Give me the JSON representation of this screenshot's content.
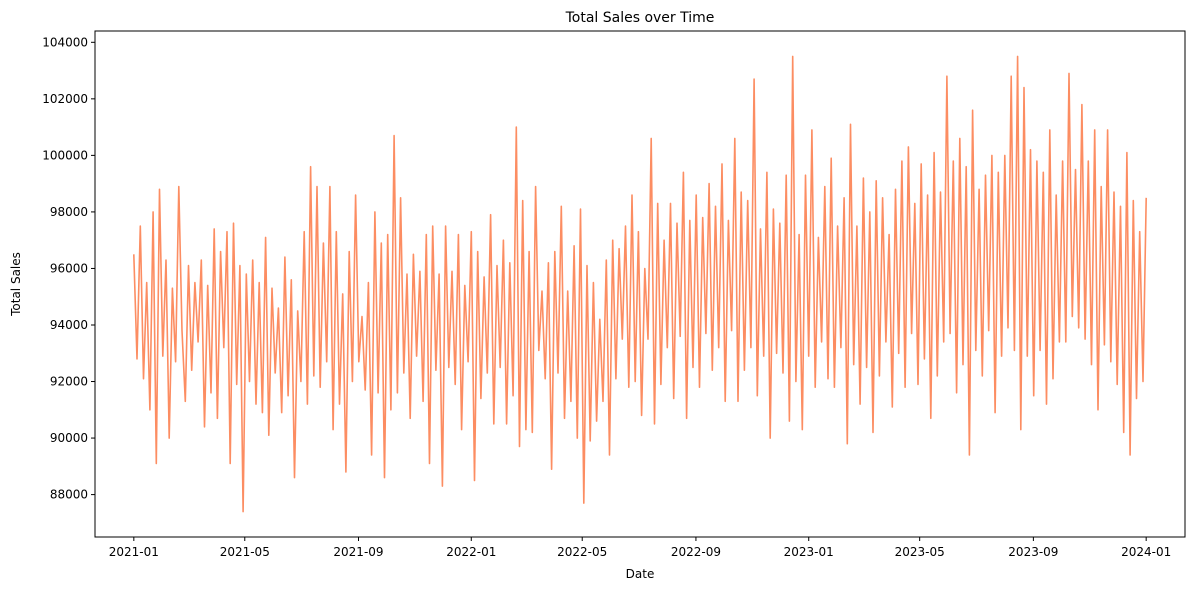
{
  "chart_data": {
    "type": "line",
    "title": "Total Sales over Time",
    "xlabel": "Date",
    "ylabel": "Total Sales",
    "x_start": "2021-01-01",
    "x_end": "2024-01-01",
    "xlim": [
      "2020-11-20",
      "2024-02-12"
    ],
    "ylim": [
      86500,
      104400
    ],
    "grid": false,
    "line_color": "#fc8d62",
    "x_ticks": [
      "2021-01",
      "2021-05",
      "2021-09",
      "2022-01",
      "2022-05",
      "2022-09",
      "2023-01",
      "2023-05",
      "2023-09",
      "2024-01"
    ],
    "y_ticks": [
      "88000",
      "90000",
      "92000",
      "94000",
      "96000",
      "98000",
      "100000",
      "102000",
      "104000"
    ],
    "series": [
      {
        "values": [
          96500,
          92800,
          97500,
          92100,
          95500,
          91000,
          98000,
          89100,
          98800,
          92900,
          96300,
          90000,
          95300,
          92700,
          98900,
          93800,
          91300,
          96100,
          92400,
          95500,
          93400,
          96300,
          90400,
          95400,
          91600,
          97400,
          90700,
          96600,
          93200,
          97300,
          89100,
          97600,
          91900,
          96100,
          87400,
          95800,
          92000,
          96300,
          91200,
          95500,
          90900,
          97100,
          90100,
          95300,
          92300,
          94600,
          90900,
          96400,
          91500,
          95600,
          88600,
          94500,
          92000,
          97300,
          91200,
          99600,
          92200,
          98900,
          91800,
          96900,
          92700,
          98900,
          90300,
          97300,
          91200,
          95100,
          88800,
          96600,
          92000,
          98600,
          92700,
          94300,
          91700,
          95500,
          89400,
          98000,
          91600,
          96900,
          88600,
          97200,
          91000,
          100700,
          91600,
          98500,
          92300,
          95800,
          90700,
          96500,
          92900,
          95900,
          91300,
          97200,
          89100,
          97500,
          92400,
          95800,
          88300,
          97500,
          92500,
          95900,
          91900,
          97200,
          90300,
          95400,
          92700,
          97300,
          88500,
          96600,
          91400,
          95700,
          92300,
          97900,
          90500,
          96100,
          92500,
          97000,
          90500,
          96200,
          91500,
          101000,
          89700,
          98400,
          90300,
          96600,
          90200,
          98900,
          93100,
          95200,
          92100,
          96200,
          88900,
          96600,
          92300,
          98200,
          90700,
          95200,
          91300,
          96800,
          90000,
          98100,
          87700,
          96100,
          89900,
          95500,
          90600,
          94200,
          91300,
          96300,
          89400,
          97000,
          92100,
          96700,
          93500,
          97500,
          91800,
          98600,
          92000,
          97300,
          90800,
          96000,
          93500,
          100600,
          90500,
          98300,
          91900,
          97000,
          93200,
          98300,
          91400,
          97600,
          93600,
          99400,
          90700,
          97700,
          92500,
          98600,
          91800,
          97800,
          93700,
          99000,
          92400,
          98200,
          93200,
          99700,
          91300,
          97700,
          93800,
          100600,
          91300,
          98700,
          92400,
          98400,
          93200,
          102700,
          91500,
          97400,
          92900,
          99400,
          90000,
          98100,
          93000,
          97600,
          92300,
          99300,
          90600,
          103500,
          92000,
          97200,
          90300,
          99300,
          92900,
          100900,
          91800,
          97100,
          93400,
          98900,
          92100,
          99900,
          91800,
          97500,
          93200,
          98500,
          89800,
          101100,
          92600,
          97500,
          91200,
          99200,
          92500,
          98000,
          90200,
          99100,
          92200,
          98500,
          93400,
          97200,
          91100,
          98800,
          93000,
          99800,
          91800,
          100300,
          93700,
          98300,
          91900,
          99700,
          92800,
          98600,
          90700,
          100100,
          92200,
          98700,
          93400,
          102800,
          93700,
          99800,
          91600,
          100600,
          92600,
          99600,
          89400,
          101600,
          93100,
          98800,
          92200,
          99300,
          93800,
          100000,
          90900,
          99400,
          92900,
          100000,
          93900,
          102800,
          93100,
          103500,
          90300,
          102400,
          92900,
          100200,
          91500,
          99800,
          93100,
          99400,
          91200,
          100900,
          92100,
          98600,
          93400,
          99800,
          93400,
          102900,
          94300,
          99500,
          93900,
          101800,
          93500,
          99800,
          92600,
          100900,
          91000,
          98900,
          93300,
          100900,
          92700,
          98700,
          91900,
          98200,
          90200,
          100100,
          89400,
          98400,
          91400,
          97300,
          92000,
          98500
        ]
      }
    ]
  }
}
